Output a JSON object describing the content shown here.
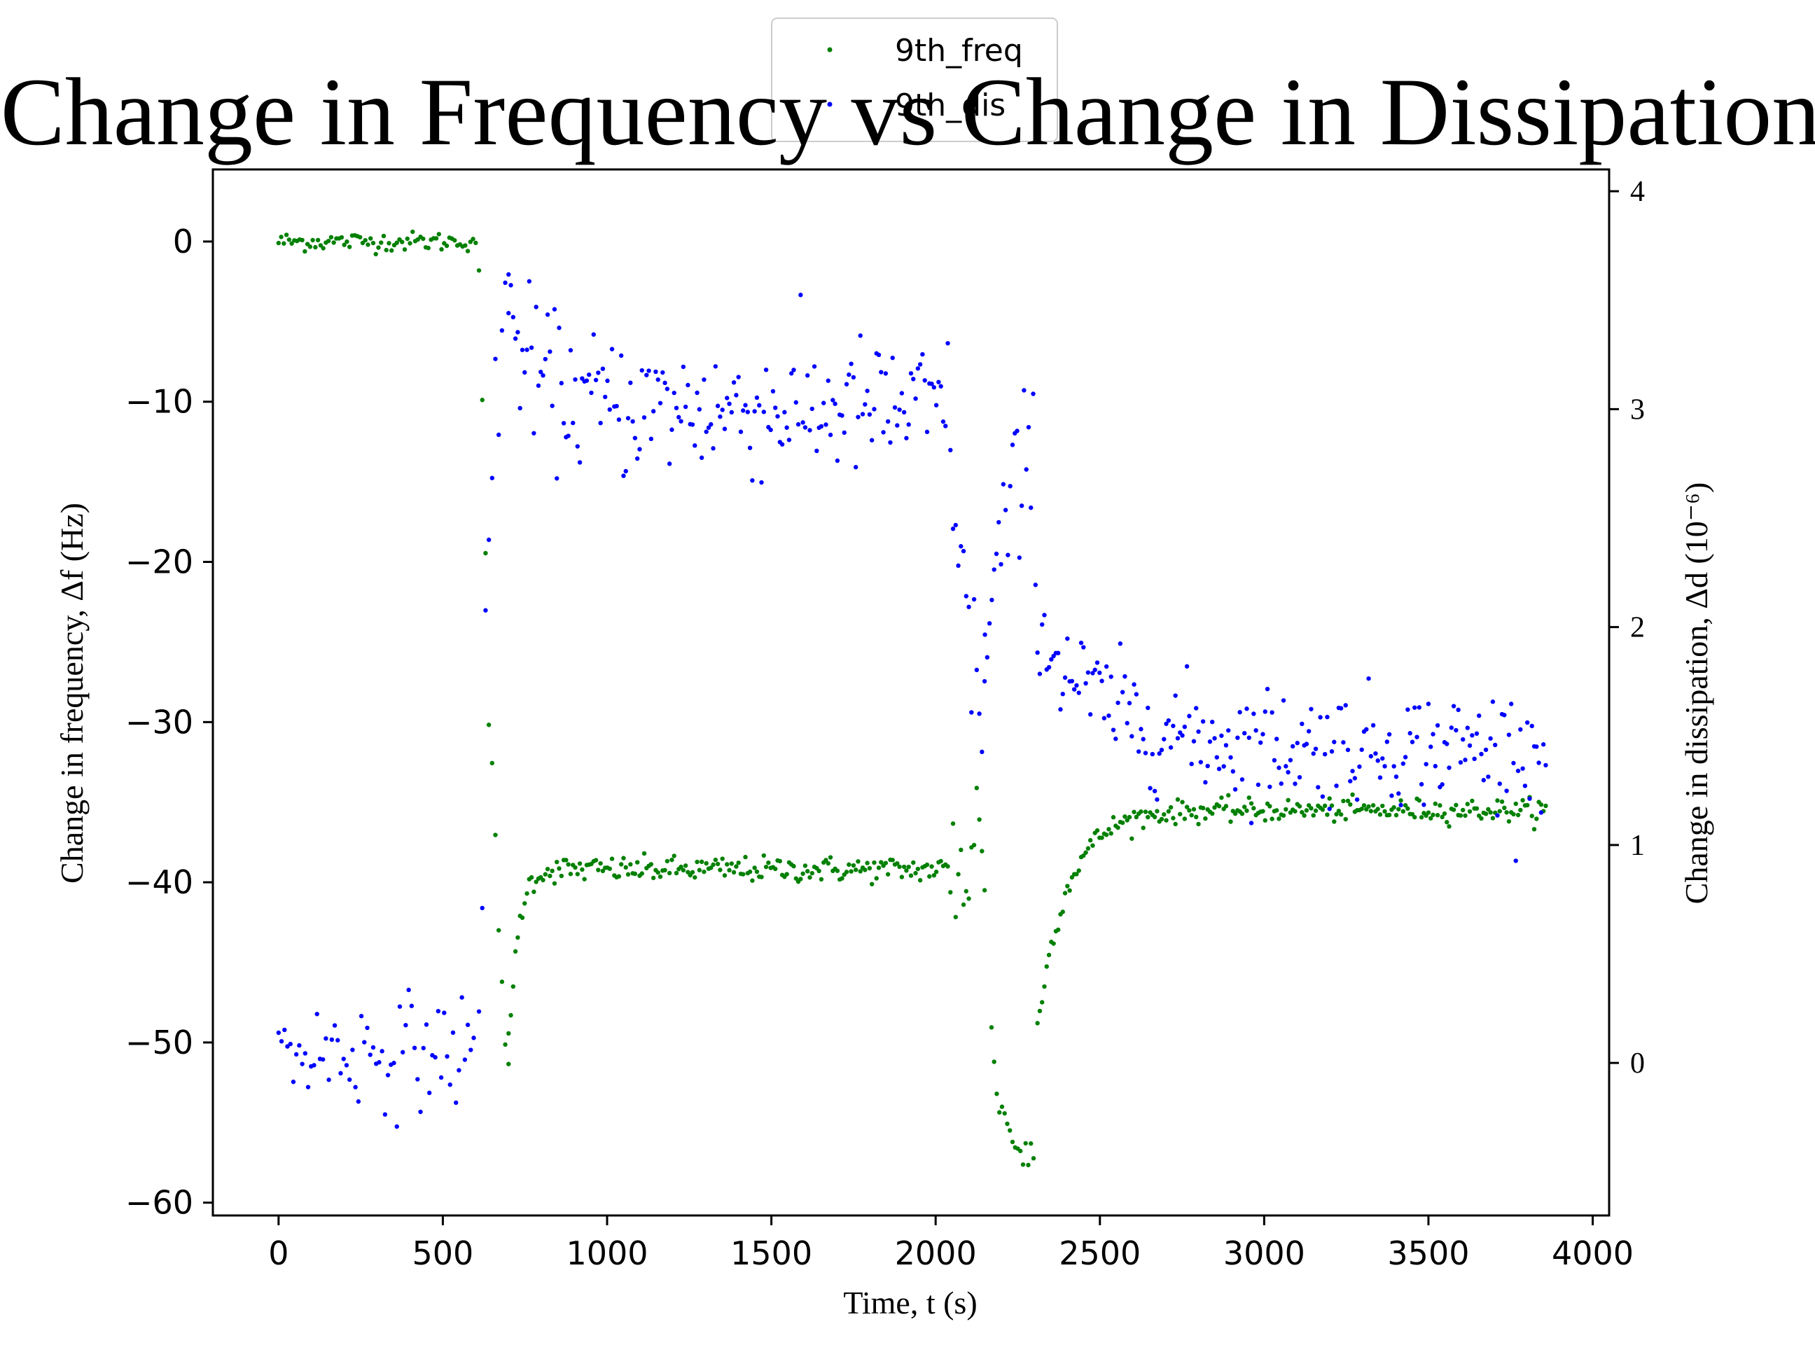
{
  "chart_data": {
    "type": "scatter",
    "title": "Change in Frequency vs Change in Dissipation",
    "xlabel": "Time, t (s)",
    "ylabel_left": "Change in frequency, Δf (Hz)",
    "ylabel_right": "Change in dissipation, Δd (10⁻⁶)",
    "xlim": [
      -200,
      4050
    ],
    "ylim_left": [
      -60.8,
      4.5
    ],
    "ylim_right": [
      -0.7,
      4.1
    ],
    "xticks": [
      0,
      500,
      1000,
      1500,
      2000,
      2500,
      3000,
      3500,
      4000
    ],
    "xtick_labels": [
      "0",
      "500",
      "1000",
      "1500",
      "2000",
      "2500",
      "3000",
      "3500",
      "4000"
    ],
    "yticks_left": [
      0,
      -10,
      -20,
      -30,
      -40,
      -50,
      -60
    ],
    "ytick_labels_left": [
      "0",
      "−10",
      "−20",
      "−30",
      "−40",
      "−50",
      "−60"
    ],
    "yticks_right": [
      0,
      1,
      2,
      3,
      4
    ],
    "ytick_labels_right": [
      "0",
      "1",
      "2",
      "3",
      "4"
    ],
    "legend_position": "top-center",
    "series": [
      {
        "name": "9th_freq",
        "axis": "left",
        "color": "#008000",
        "segments": [
          {
            "t0": 0,
            "t1": 600,
            "start": 0,
            "end": 0,
            "tau": 50,
            "noise": 0.3,
            "step": 8
          },
          {
            "t0": 610,
            "t1": 700,
            "start": 0,
            "end": -55,
            "tau": 40,
            "noise": 1.5,
            "step": 10
          },
          {
            "t0": 700,
            "t1": 2040,
            "start": -52,
            "end": -39.2,
            "tau": 25,
            "noise": 0.4,
            "step": 7
          },
          {
            "t0": 2045,
            "t1": 2150,
            "start": -40,
            "end": -37,
            "tau": 40,
            "noise": 3,
            "step": 8
          },
          {
            "t0": 2170,
            "t1": 2300,
            "start": -50,
            "end": -57.5,
            "tau": 40,
            "noise": 0.8,
            "step": 8
          },
          {
            "t0": 2310,
            "t1": 3860,
            "start": -49,
            "end": -35.5,
            "tau": 90,
            "noise": 0.35,
            "step": 7
          }
        ]
      },
      {
        "name": "9th_dis",
        "axis": "right",
        "color": "#0000ff",
        "segments": [
          {
            "t0": 0,
            "t1": 600,
            "start": 0.05,
            "end": 0.05,
            "tau": 50,
            "noise": 0.13,
            "step": 9
          },
          {
            "t0": 610,
            "t1": 700,
            "start": 0.0,
            "end": 3.8,
            "tau": 30,
            "noise": 0.25,
            "step": 10
          },
          {
            "t0": 700,
            "t1": 2040,
            "start": 3.4,
            "end": 3.0,
            "tau": 100,
            "noise": 0.16,
            "step": 7
          },
          {
            "t0": 2045,
            "t1": 2150,
            "start": 3.0,
            "end": 1.6,
            "tau": 40,
            "noise": 0.2,
            "step": 8
          },
          {
            "t0": 2150,
            "t1": 2310,
            "start": 1.8,
            "end": 2.8,
            "tau": 60,
            "noise": 0.2,
            "step": 7
          },
          {
            "t0": 2310,
            "t1": 3860,
            "start": 2.0,
            "end": 1.45,
            "tau": 200,
            "noise": 0.13,
            "step": 7
          }
        ]
      }
    ]
  }
}
